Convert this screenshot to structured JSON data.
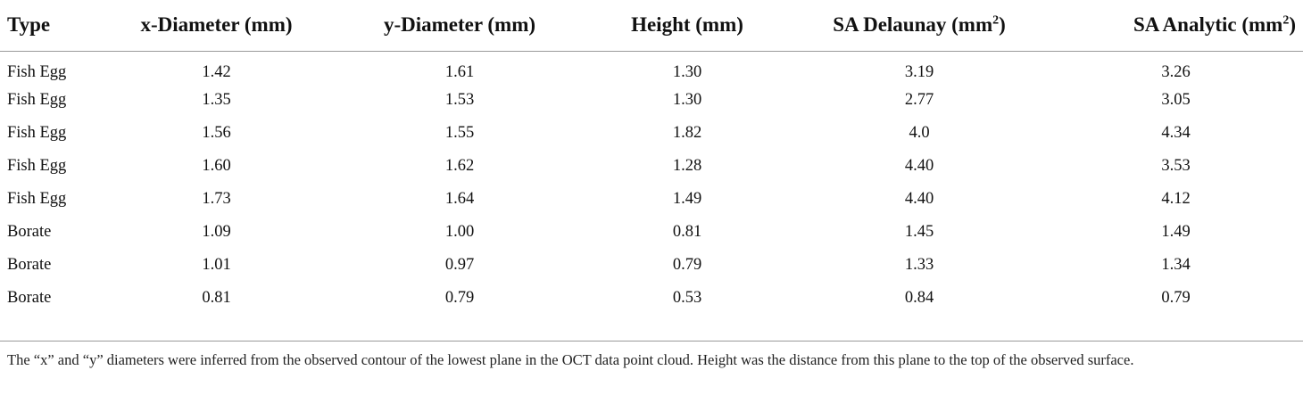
{
  "table": {
    "headers": [
      {
        "label": "Type",
        "unit_base": "",
        "unit_sup": "",
        "unit_close": ""
      },
      {
        "label": "x-Diameter (mm)",
        "unit_base": "",
        "unit_sup": "",
        "unit_close": ""
      },
      {
        "label": "y-Diameter (mm)",
        "unit_base": "",
        "unit_sup": "",
        "unit_close": ""
      },
      {
        "label": "Height (mm)",
        "unit_base": "",
        "unit_sup": "",
        "unit_close": ""
      },
      {
        "label": "SA Delaunay (mm",
        "unit_base": "",
        "unit_sup": "2",
        "unit_close": ")"
      },
      {
        "label": "SA Analytic (mm",
        "unit_base": "",
        "unit_sup": "2",
        "unit_close": ")"
      }
    ],
    "rows": [
      [
        "Fish Egg",
        "1.42",
        "1.61",
        "1.30",
        "3.19",
        "3.26"
      ],
      [
        "Fish Egg",
        "1.35",
        "1.53",
        "1.30",
        "2.77",
        "3.05"
      ],
      [
        "Fish Egg",
        "1.56",
        "1.55",
        "1.82",
        "4.0",
        "4.34"
      ],
      [
        "Fish Egg",
        "1.60",
        "1.62",
        "1.28",
        "4.40",
        "3.53"
      ],
      [
        "Fish Egg",
        "1.73",
        "1.64",
        "1.49",
        "4.40",
        "4.12"
      ],
      [
        "Borate",
        "1.09",
        "1.00",
        "0.81",
        "1.45",
        "1.49"
      ],
      [
        "Borate",
        "1.01",
        "0.97",
        "0.79",
        "1.33",
        "1.34"
      ],
      [
        "Borate",
        "0.81",
        "0.79",
        "0.53",
        "0.84",
        "0.79"
      ]
    ]
  },
  "footnote": "The “x” and “y” diameters were inferred from the observed contour of the lowest plane in the OCT data point cloud. Height was the distance from this plane to the top of the observed surface."
}
